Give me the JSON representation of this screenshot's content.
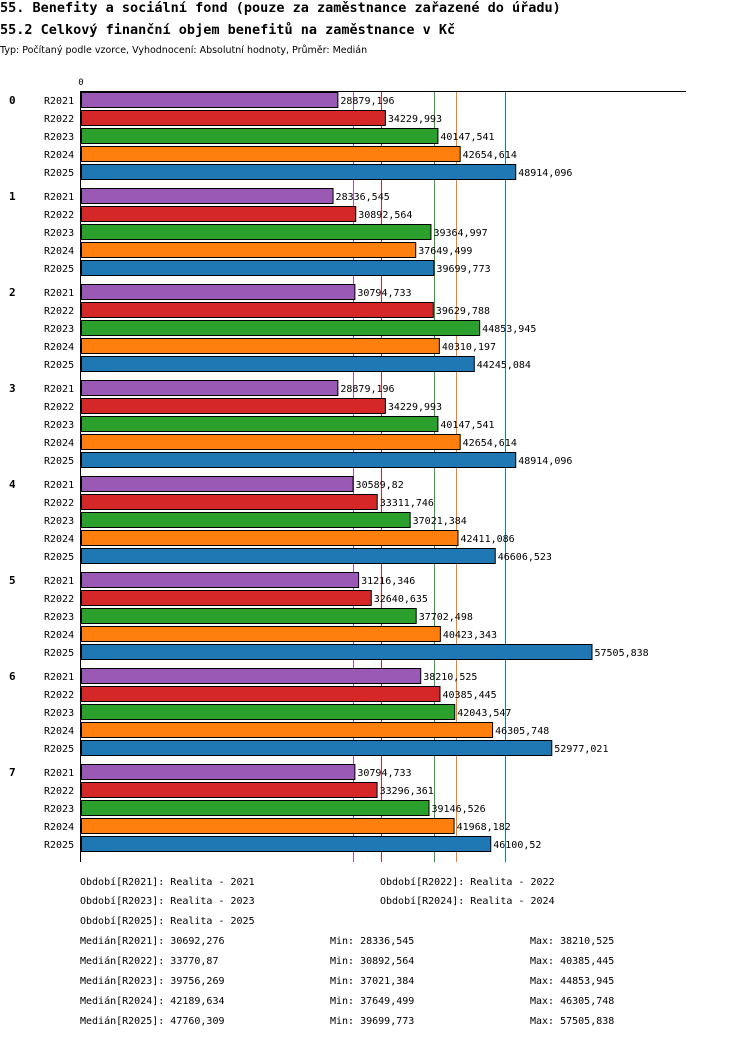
{
  "header": {
    "title": "55. Benefity a sociální fond (pouze za zaměstnance zařazené do úřadu)",
    "subtitle": "55.2 Celkový finanční objem benefitů na zaměstnance v Kč",
    "type_line": "Typ: Počítaný podle vzorce, Vyhodnocení: Absolutní hodnoty, Průměr: Medián"
  },
  "chart_data": {
    "type": "bar",
    "orientation": "horizontal",
    "axis_zero_label": "0",
    "xlim": [
      0,
      58000000
    ],
    "groups": [
      "0",
      "1",
      "2",
      "3",
      "4",
      "5",
      "6",
      "7"
    ],
    "series": [
      {
        "name": "R2021",
        "color": "#9b59b6",
        "values": [
          28879196,
          28336545,
          30794733,
          28879196,
          30589820,
          31216346,
          38210525,
          30794733
        ],
        "labels": [
          "28879,196",
          "28336,545",
          "30794,733",
          "28879,196",
          "30589,82",
          "31216,346",
          "38210,525",
          "30794,733"
        ]
      },
      {
        "name": "R2022",
        "color": "#d62728",
        "values": [
          34229993,
          30892564,
          39629788,
          34229993,
          33311746,
          32640635,
          40385445,
          33296361
        ],
        "labels": [
          "34229,993",
          "30892,564",
          "39629,788",
          "34229,993",
          "33311,746",
          "32640,635",
          "40385,445",
          "33296,361"
        ]
      },
      {
        "name": "R2023",
        "color": "#2ca02c",
        "values": [
          40147541,
          39364997,
          44853945,
          40147541,
          37021384,
          37702498,
          42043547,
          39146526
        ],
        "labels": [
          "40147,541",
          "39364,997",
          "44853,945",
          "40147,541",
          "37021,384",
          "37702,498",
          "42043,547",
          "39146,526"
        ]
      },
      {
        "name": "R2024",
        "color": "#ff7f0e",
        "values": [
          42654614,
          37649499,
          40310197,
          42654614,
          42411086,
          40423343,
          46305748,
          41968182
        ],
        "labels": [
          "42654,614",
          "37649,499",
          "40310,197",
          "42654,614",
          "42411,086",
          "40423,343",
          "46305,748",
          "41968,182"
        ]
      },
      {
        "name": "R2025",
        "color": "#1f77b4",
        "values": [
          48914096,
          39699773,
          44245084,
          48914096,
          46606523,
          57505838,
          52977021,
          46100520
        ],
        "labels": [
          "48914,096",
          "39699,773",
          "44245,084",
          "48914,096",
          "46606,523",
          "57505,838",
          "52977,021",
          "46100,52"
        ]
      }
    ],
    "median_lines": [
      {
        "name": "R2021",
        "value": 30692276
      },
      {
        "name": "R2022",
        "value": 33770870
      },
      {
        "name": "R2023",
        "value": 39756269
      },
      {
        "name": "R2024",
        "value": 42189634
      },
      {
        "name": "R2025",
        "value": 47760309
      }
    ]
  },
  "legend": {
    "periods": [
      "Období[R2021]: Realita - 2021",
      "Období[R2022]: Realita - 2022",
      "Období[R2023]: Realita - 2023",
      "Období[R2024]: Realita - 2024",
      "Období[R2025]: Realita - 2025"
    ],
    "stats": [
      {
        "median": "Medián[R2021]: 30692,276",
        "min": "Min: 28336,545",
        "max": "Max: 38210,525"
      },
      {
        "median": "Medián[R2022]: 33770,87",
        "min": "Min: 30892,564",
        "max": "Max: 40385,445"
      },
      {
        "median": "Medián[R2023]: 39756,269",
        "min": "Min: 37021,384",
        "max": "Max: 44853,945"
      },
      {
        "median": "Medián[R2024]: 42189,634",
        "min": "Min: 37649,499",
        "max": "Max: 46305,748"
      },
      {
        "median": "Medián[R2025]: 47760,309",
        "min": "Min: 39699,773",
        "max": "Max: 57505,838"
      }
    ]
  }
}
